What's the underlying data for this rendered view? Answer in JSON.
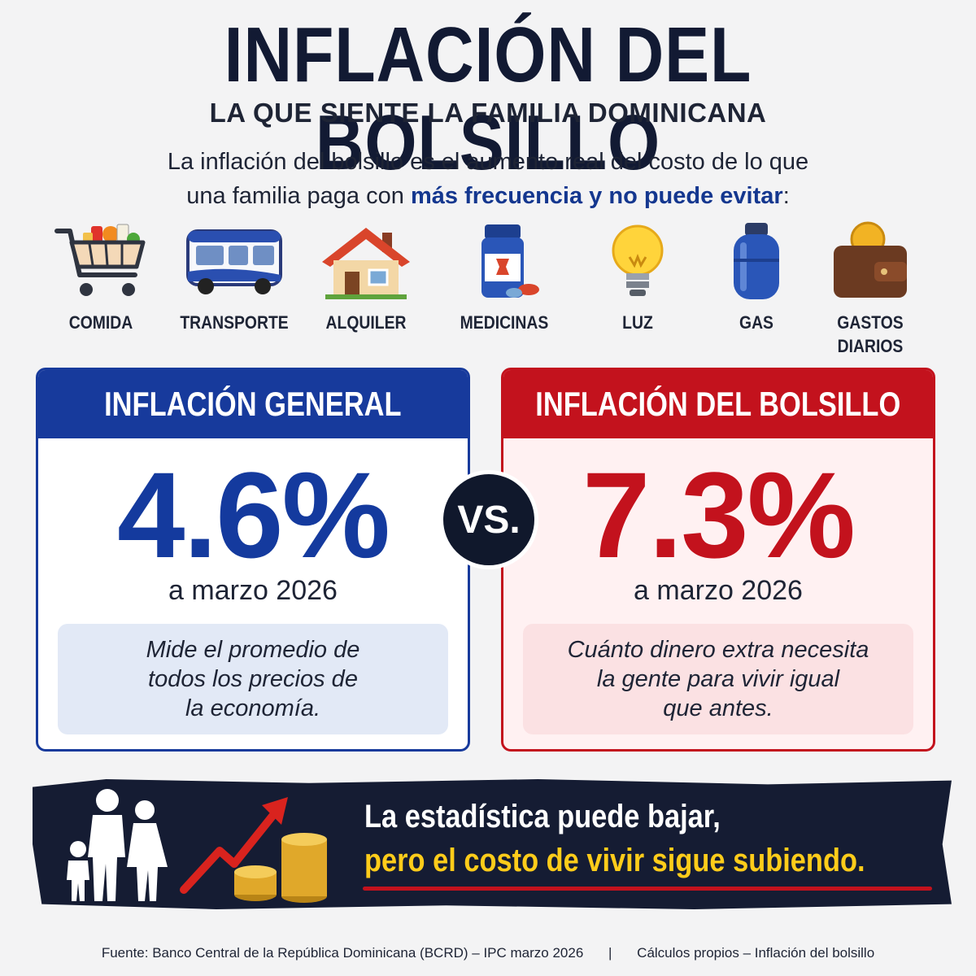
{
  "header": {
    "title": "INFLACIÓN DEL BOLSILLO",
    "subtitle": "LA QUE SIENTE LA FAMILIA DOMINICANA",
    "intro_line1": "La inflación del bolsillo es el aumento real del costo de lo que",
    "intro_line2_prefix": "una familia paga con ",
    "intro_line2_highlight": "más frecuencia y no puede evitar",
    "intro_line2_suffix": ":"
  },
  "categories": [
    {
      "label": "COMIDA",
      "icon": "shopping-cart-icon"
    },
    {
      "label": "TRANSPORTE",
      "icon": "bus-icon"
    },
    {
      "label": "ALQUILER",
      "icon": "house-icon"
    },
    {
      "label": "MEDICINAS",
      "icon": "medicine-icon"
    },
    {
      "label": "LUZ",
      "icon": "light-bulb-icon"
    },
    {
      "label": "GAS",
      "icon": "gas-cylinder-icon"
    },
    {
      "label": "GASTOS",
      "label2": "DIARIOS",
      "icon": "wallet-icon"
    }
  ],
  "comparison": {
    "general": {
      "title": "INFLACIÓN GENERAL",
      "value": "4.6%",
      "date": "a marzo 2026",
      "description_line1": "Mide el promedio de",
      "description_line2": "todos los precios de",
      "description_line3": "la economía."
    },
    "vs_label": "VS.",
    "bolsillo": {
      "title": "INFLACIÓN DEL BOLSILLO",
      "value": "7.3%",
      "date": "a marzo 2026",
      "description_line1": "Cuánto dinero extra necesita",
      "description_line2": "la gente para vivir igual",
      "description_line3": "que antes."
    }
  },
  "banner": {
    "line1": "La estadística puede bajar,",
    "line2": "pero el costo de vivir sigue subiendo."
  },
  "footer": {
    "source": "Fuente: Banco Central de la República Dominicana (BCRD) – IPC marzo 2026",
    "separator": "|",
    "calc": "Cálculos propios – Inflación del bolsillo"
  },
  "colors": {
    "navy": "#121a33",
    "blue": "#173a9c",
    "red": "#c3121d",
    "yellow": "#ffcc1a"
  }
}
